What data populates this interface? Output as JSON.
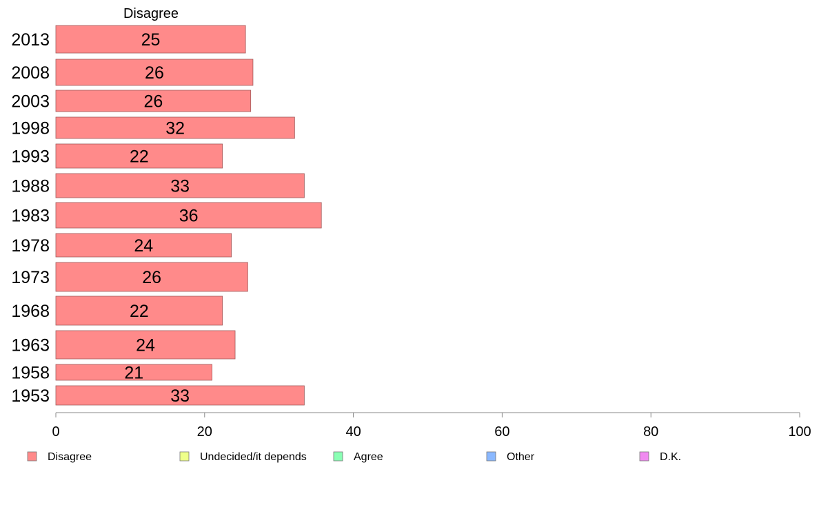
{
  "chart_data": {
    "type": "bar",
    "orientation": "horizontal",
    "column_header": "Disagree",
    "categories": [
      "2013",
      "2008",
      "2003",
      "1998",
      "1993",
      "1988",
      "1983",
      "1978",
      "1973",
      "1968",
      "1963",
      "1958",
      "1953"
    ],
    "series": [
      {
        "name": "Disagree",
        "color": "#ff8a8a",
        "values": [
          25.5,
          26.5,
          26.2,
          32.1,
          22.4,
          33.4,
          35.7,
          23.6,
          25.8,
          22.4,
          24.1,
          21.0,
          33.4
        ],
        "labels": [
          "25",
          "26",
          "26",
          "32",
          "22",
          "33",
          "36",
          "24",
          "26",
          "22",
          "24",
          "21",
          "33"
        ]
      }
    ],
    "xlim": [
      0,
      100
    ],
    "xticks": [
      0,
      20,
      40,
      60,
      80,
      100
    ],
    "legend": {
      "placement": "bottom",
      "items": [
        {
          "label": "Disagree",
          "color": "#ff8a8a"
        },
        {
          "label": "Undecided/it depends",
          "color": "#eeff8a"
        },
        {
          "label": "Agree",
          "color": "#8affb4"
        },
        {
          "label": "Other",
          "color": "#8ab8ff"
        },
        {
          "label": "D.K.",
          "color": "#f08af0"
        }
      ]
    },
    "grid": false
  }
}
